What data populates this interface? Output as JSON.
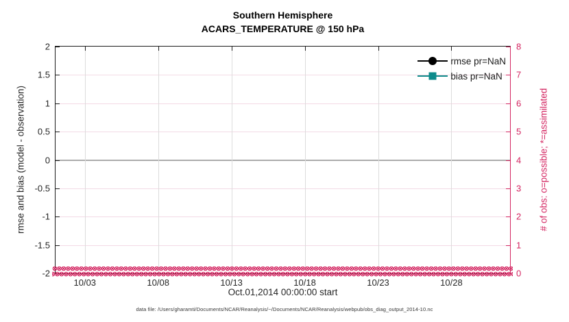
{
  "figure": {
    "title_line1": "Southern Hemisphere",
    "title_line2": "ACARS_TEMPERATURE @ 150 hPa",
    "footer": "data file: /Users/gharamti/Documents/NCAR/Reanalysis/~/Documents/NCAR/Reanalysis/webpub/obs_diag_output_2014-10.nc"
  },
  "chart_data": {
    "type": "line",
    "title": "Southern Hemisphere",
    "subtitle": "ACARS_TEMPERATURE @ 150 hPa",
    "xlabel": "Oct.01,2014 00:00:00 start",
    "left_axis": {
      "label": "rmse and bias (model - observation)",
      "range": [
        -2,
        2
      ],
      "ticks": [
        "2",
        "1.5",
        "1",
        "0.5",
        "0",
        "-0.5",
        "-1",
        "-1.5",
        "-2"
      ]
    },
    "right_axis": {
      "label": "# of obs: o=possible; *=assimilated",
      "range": [
        0,
        8
      ],
      "ticks": [
        "8",
        "7",
        "6",
        "5",
        "4",
        "3",
        "2",
        "1",
        "0"
      ],
      "color": "#d32460"
    },
    "x_axis": {
      "range_days": [
        0,
        31
      ],
      "ticks": [
        {
          "day": 2,
          "label": "10/03"
        },
        {
          "day": 7,
          "label": "10/08"
        },
        {
          "day": 12,
          "label": "10/13"
        },
        {
          "day": 17,
          "label": "10/18"
        },
        {
          "day": 22,
          "label": "10/23"
        },
        {
          "day": 27,
          "label": "10/28"
        }
      ]
    },
    "series": [
      {
        "name": "rmse pr=NaN",
        "color": "#000000",
        "marker": "filled-circle",
        "values": null
      },
      {
        "name": "bias pr=NaN",
        "color": "#0d8b8b",
        "marker": "filled-square",
        "values": null
      },
      {
        "name": "# of obs possible",
        "color": "#d32460",
        "marker": "o",
        "constant_value": 0
      },
      {
        "name": "# of obs assimilated",
        "color": "#d32460",
        "marker": "*",
        "constant_value": 0
      }
    ],
    "zero_line": {
      "value": 0,
      "color": "#ababab"
    },
    "grid": {
      "vertical_color": "#dcdcdc",
      "horizontal_color": "#f3dae5"
    },
    "legend_position": "top-right-inside",
    "obs_markers": {
      "glyph": "⊗",
      "rows": 2,
      "repeat": 180,
      "value_on_right_axis": 0
    }
  }
}
